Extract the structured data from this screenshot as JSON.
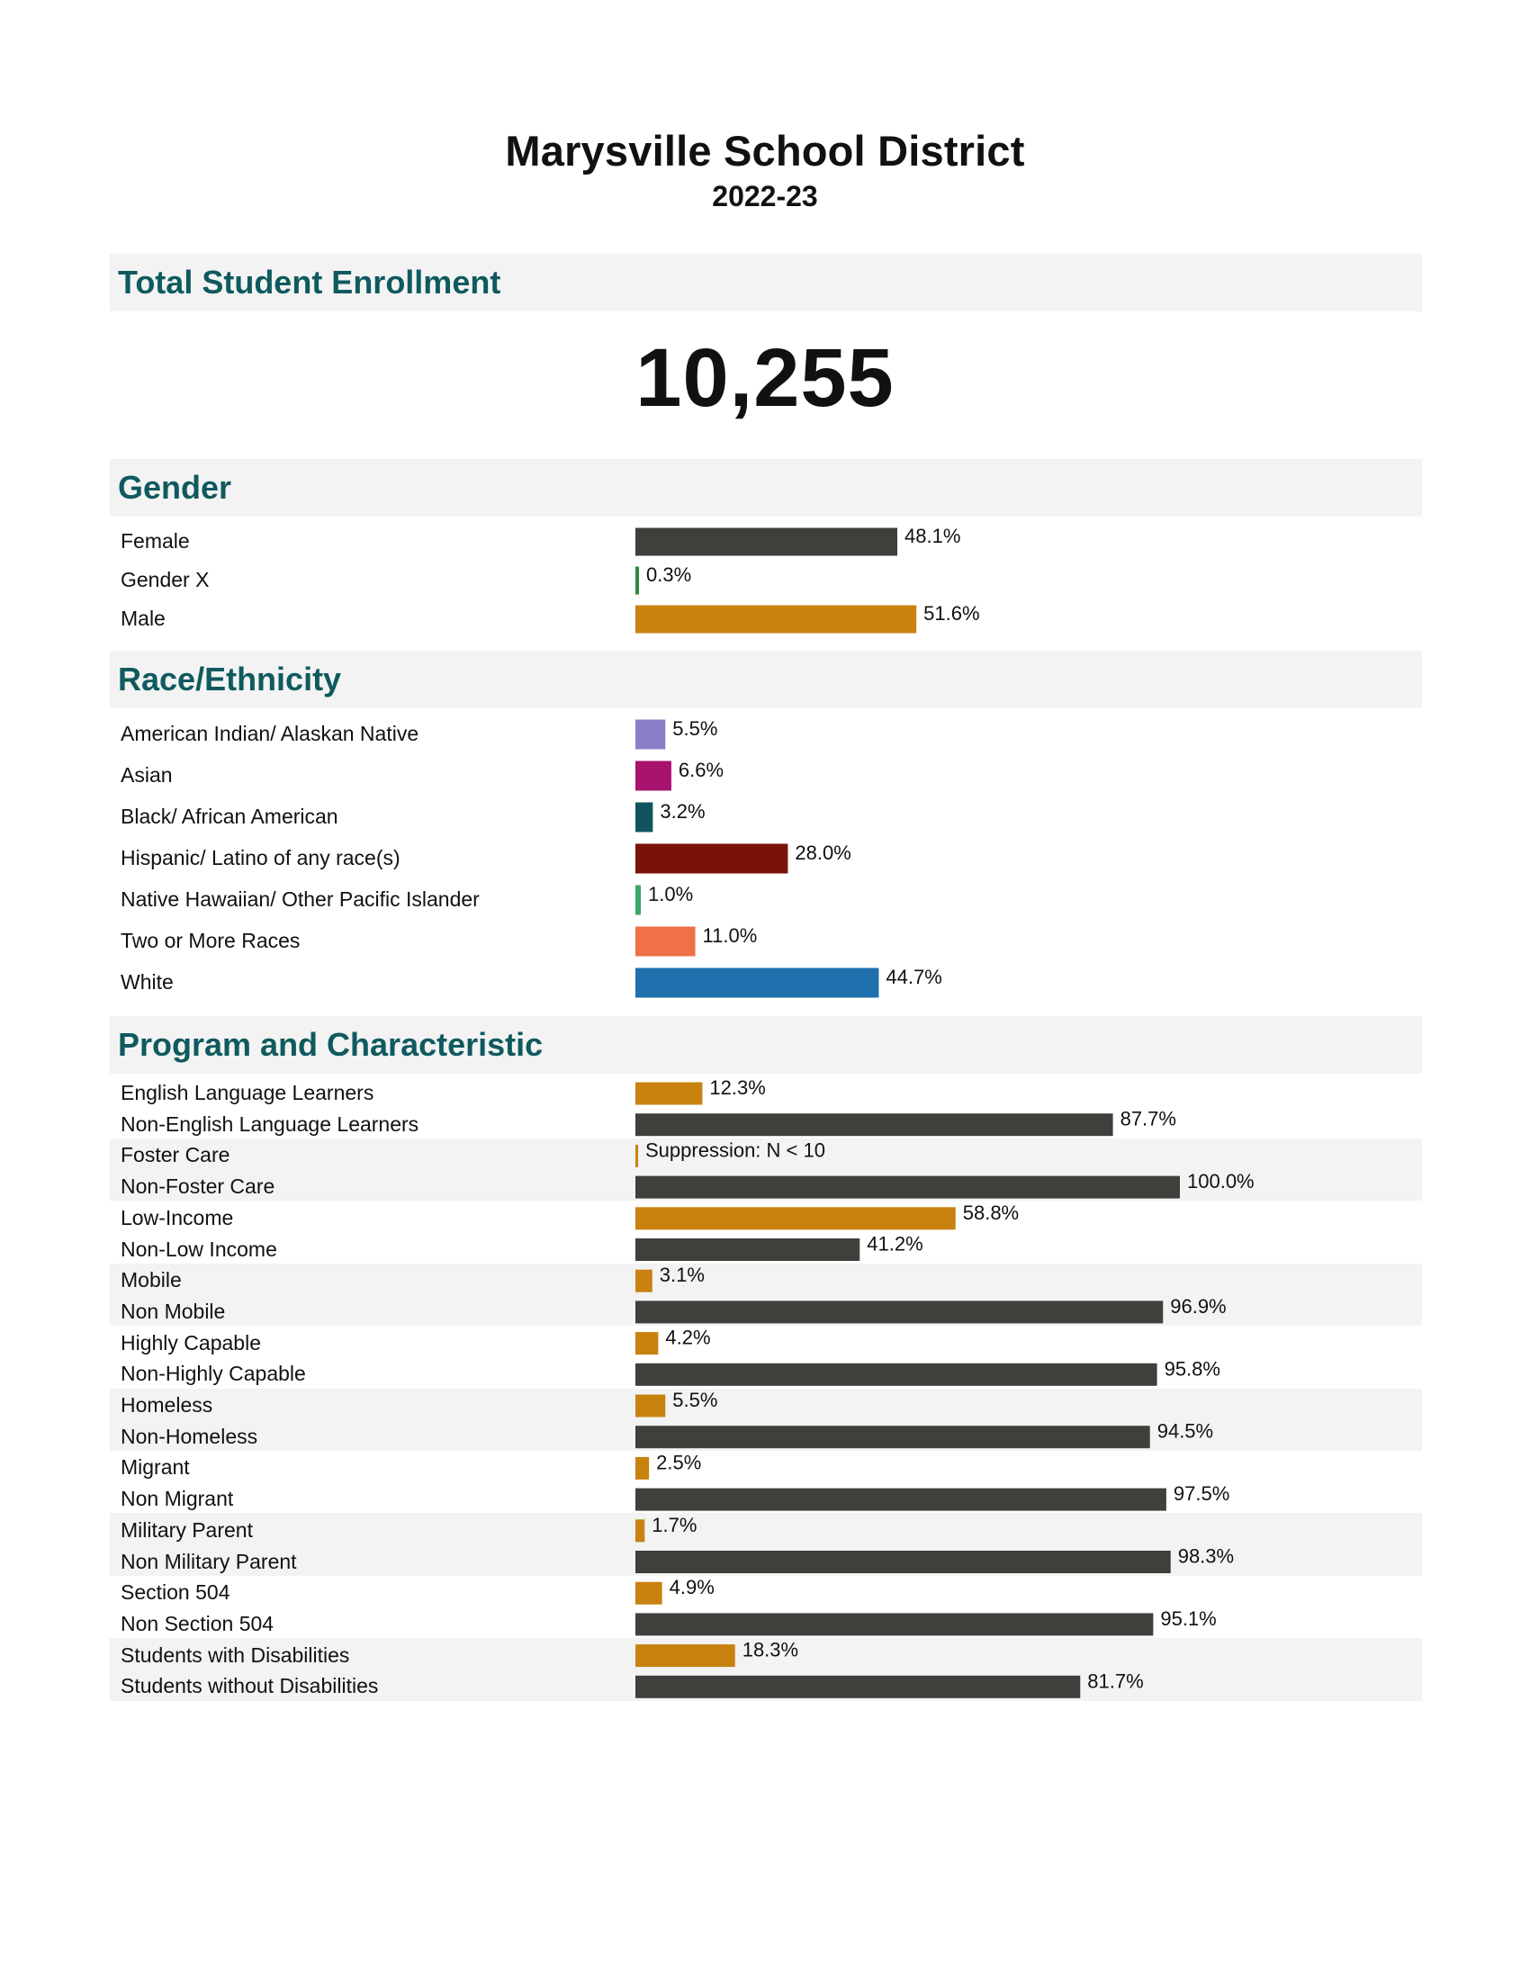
{
  "title": "Marysville School District",
  "subtitle": "2022-23",
  "sections": {
    "enrollment": "Total Student Enrollment",
    "gender": "Gender",
    "race": "Race/Ethnicity",
    "program": "Program and Characteristic"
  },
  "total_enrollment": "10,255",
  "colors": {
    "dark": "#3f3f3b",
    "gold": "#c8820f",
    "green": "#2e8b3c",
    "heading": "#0f5a5e"
  },
  "chart_data": [
    {
      "type": "bar",
      "title": "Gender",
      "categories": [
        "Female",
        "Gender X",
        "Male"
      ],
      "values": [
        48.1,
        0.3,
        51.6
      ],
      "labels": [
        "48.1%",
        "0.3%",
        "51.6%"
      ],
      "colors": [
        "#3f3f3b",
        "#2e8b3c",
        "#c8820f"
      ]
    },
    {
      "type": "bar",
      "title": "Race/Ethnicity",
      "categories": [
        "American Indian/ Alaskan Native",
        "Asian",
        "Black/ African American",
        "Hispanic/ Latino of any race(s)",
        "Native Hawaiian/ Other Pacific Islander",
        "Two or More Races",
        "White"
      ],
      "values": [
        5.5,
        6.6,
        3.2,
        28.0,
        1.0,
        11.0,
        44.7
      ],
      "labels": [
        "5.5%",
        "6.6%",
        "3.2%",
        "28.0%",
        "1.0%",
        "11.0%",
        "44.7%"
      ],
      "colors": [
        "#8a7fc6",
        "#a8136f",
        "#10555e",
        "#7a1208",
        "#3aa66a",
        "#f07048",
        "#1f6fad"
      ]
    },
    {
      "type": "bar",
      "title": "Program and Characteristic",
      "categories": [
        "English Language Learners",
        "Non-English Language Learners",
        "Foster Care",
        "Non-Foster Care",
        "Low-Income",
        "Non-Low Income",
        "Mobile",
        "Non Mobile",
        "Highly Capable",
        "Non-Highly Capable",
        "Homeless",
        "Non-Homeless",
        "Migrant",
        "Non Migrant",
        "Military Parent",
        "Non Military Parent",
        "Section 504",
        "Non Section 504",
        "Students with Disabilities",
        "Students without Disabilities"
      ],
      "values": [
        12.3,
        87.7,
        null,
        100.0,
        58.8,
        41.2,
        3.1,
        96.9,
        4.2,
        95.8,
        5.5,
        94.5,
        2.5,
        97.5,
        1.7,
        98.3,
        4.9,
        95.1,
        18.3,
        81.7
      ],
      "labels": [
        "12.3%",
        "87.7%",
        "Suppression: N < 10",
        "100.0%",
        "58.8%",
        "41.2%",
        "3.1%",
        "96.9%",
        "4.2%",
        "95.8%",
        "5.5%",
        "94.5%",
        "2.5%",
        "97.5%",
        "1.7%",
        "98.3%",
        "4.9%",
        "95.1%",
        "18.3%",
        "81.7%"
      ],
      "colors": [
        "#c8820f",
        "#3f3f3b",
        "#c8820f",
        "#3f3f3b",
        "#c8820f",
        "#3f3f3b",
        "#c8820f",
        "#3f3f3b",
        "#c8820f",
        "#3f3f3b",
        "#c8820f",
        "#3f3f3b",
        "#c8820f",
        "#3f3f3b",
        "#c8820f",
        "#3f3f3b",
        "#c8820f",
        "#3f3f3b",
        "#c8820f",
        "#3f3f3b"
      ]
    }
  ]
}
